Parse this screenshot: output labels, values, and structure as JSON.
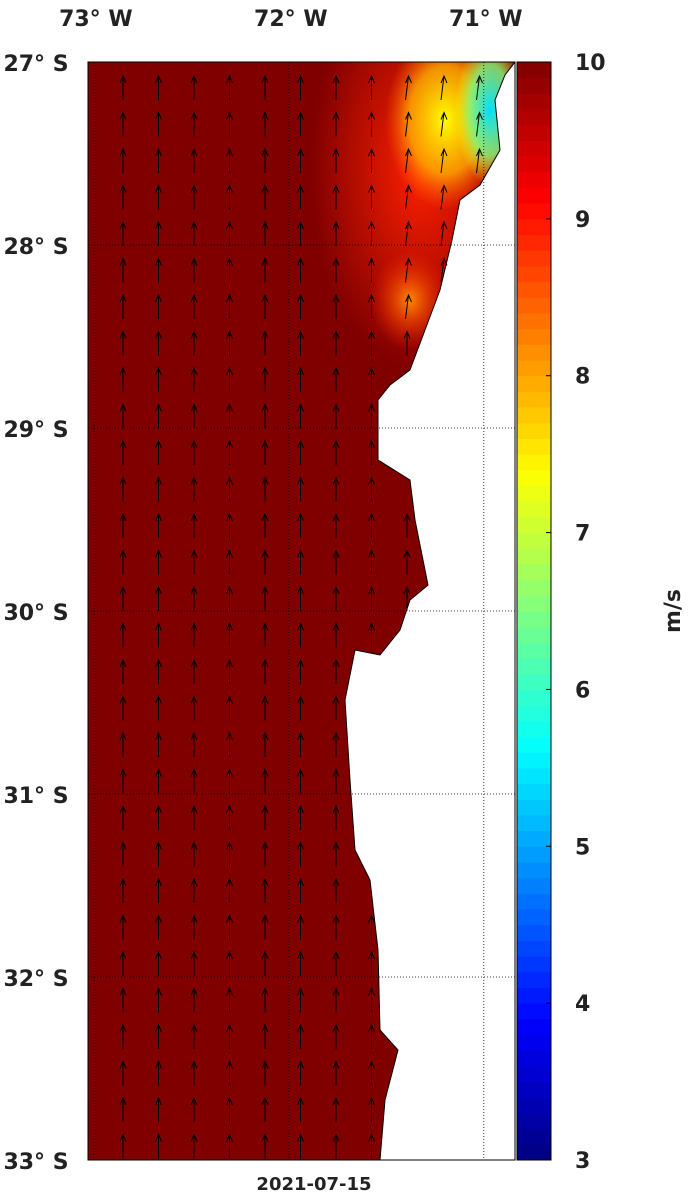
{
  "map": {
    "lonlim": [
      -73.03,
      -70.84
    ],
    "latlim": [
      -27,
      -33
    ],
    "lonticks": [
      {
        "value": -73,
        "label": "73° W"
      },
      {
        "value": -72,
        "label": "72° W"
      },
      {
        "value": -71,
        "label": "71° W"
      }
    ],
    "latticks": [
      {
        "value": -27,
        "label": "27° S"
      },
      {
        "value": -28,
        "label": "28° S"
      },
      {
        "value": -29,
        "label": "29° S"
      },
      {
        "value": -30,
        "label": "30° S"
      },
      {
        "value": -31,
        "label": "31° S"
      },
      {
        "value": -32,
        "label": "32° S"
      },
      {
        "value": -33,
        "label": "33° S"
      }
    ],
    "colorbar": {
      "lim": [
        3,
        10
      ],
      "ticks": [
        3,
        4,
        5,
        6,
        7,
        8,
        9,
        10
      ],
      "label": "m/s"
    },
    "date": "2021-07-15"
  }
}
